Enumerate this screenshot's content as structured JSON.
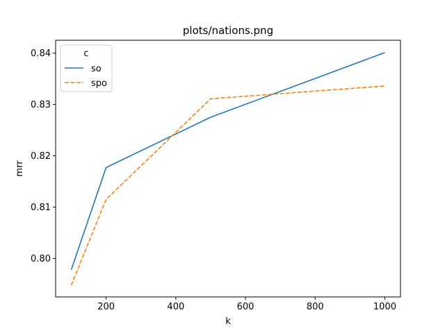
{
  "chart_data": {
    "type": "line",
    "title": "plots/nations.png",
    "xlabel": "k",
    "ylabel": "mrr",
    "x": [
      100,
      200,
      500,
      1000
    ],
    "series": [
      {
        "name": "so",
        "values": [
          0.7978,
          0.8177,
          0.8275,
          0.8401
        ],
        "color": "#1f77b4",
        "dash": "solid"
      },
      {
        "name": "spo",
        "values": [
          0.7948,
          0.8115,
          0.8311,
          0.8336
        ],
        "color": "#ff7f0e",
        "dash": "dashed"
      }
    ],
    "xlim": [
      55,
      1045
    ],
    "ylim": [
      0.7925,
      0.8425
    ],
    "xticks": [
      200,
      400,
      600,
      800,
      1000
    ],
    "xtick_labels": [
      "200",
      "400",
      "600",
      "800",
      "1000"
    ],
    "yticks": [
      0.8,
      0.81,
      0.82,
      0.83,
      0.84
    ],
    "ytick_labels": [
      "0.80",
      "0.81",
      "0.82",
      "0.83",
      "0.84"
    ],
    "legend": {
      "title": "c",
      "placement": "top-left"
    },
    "grid": false
  }
}
